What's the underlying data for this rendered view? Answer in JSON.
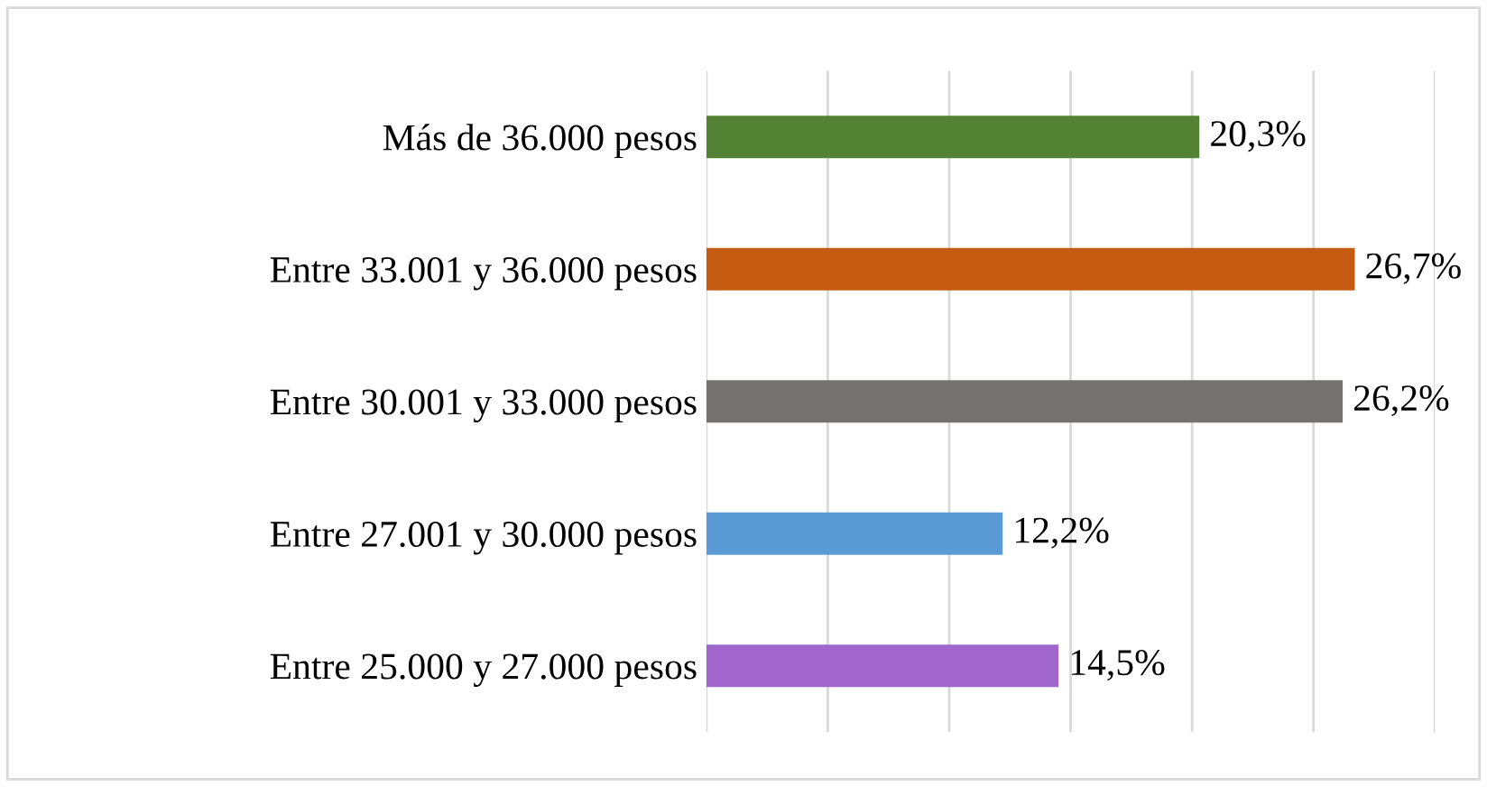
{
  "chart_data": {
    "type": "bar",
    "orientation": "horizontal",
    "categories": [
      "Más de 36.000 pesos",
      "Entre 33.001 y 36.000 pesos",
      "Entre 30.001 y 33.000 pesos",
      "Entre 27.001 y 30.000 pesos",
      "Entre 25.000 y 27.000 pesos"
    ],
    "values": [
      20.3,
      26.7,
      26.2,
      12.2,
      14.5
    ],
    "colors": [
      "#548235",
      "#c55a11",
      "#767171",
      "#5b9bd5",
      "#a066cc"
    ],
    "value_labels": [
      "20,3%",
      "26,7%",
      "26,2%",
      "12,2%",
      "14,5%"
    ],
    "xlim": [
      0,
      30
    ],
    "xticks": [
      {
        "value": 0,
        "label": null
      },
      {
        "value": 5,
        "label": null
      },
      {
        "value": 10,
        "label": null
      },
      {
        "value": 15,
        "label": null
      },
      {
        "value": 20,
        "label": null
      },
      {
        "value": 25,
        "label": null
      },
      {
        "value": 30,
        "label": null
      }
    ],
    "grid": "x",
    "tick_labels": "y",
    "legend": false
  }
}
